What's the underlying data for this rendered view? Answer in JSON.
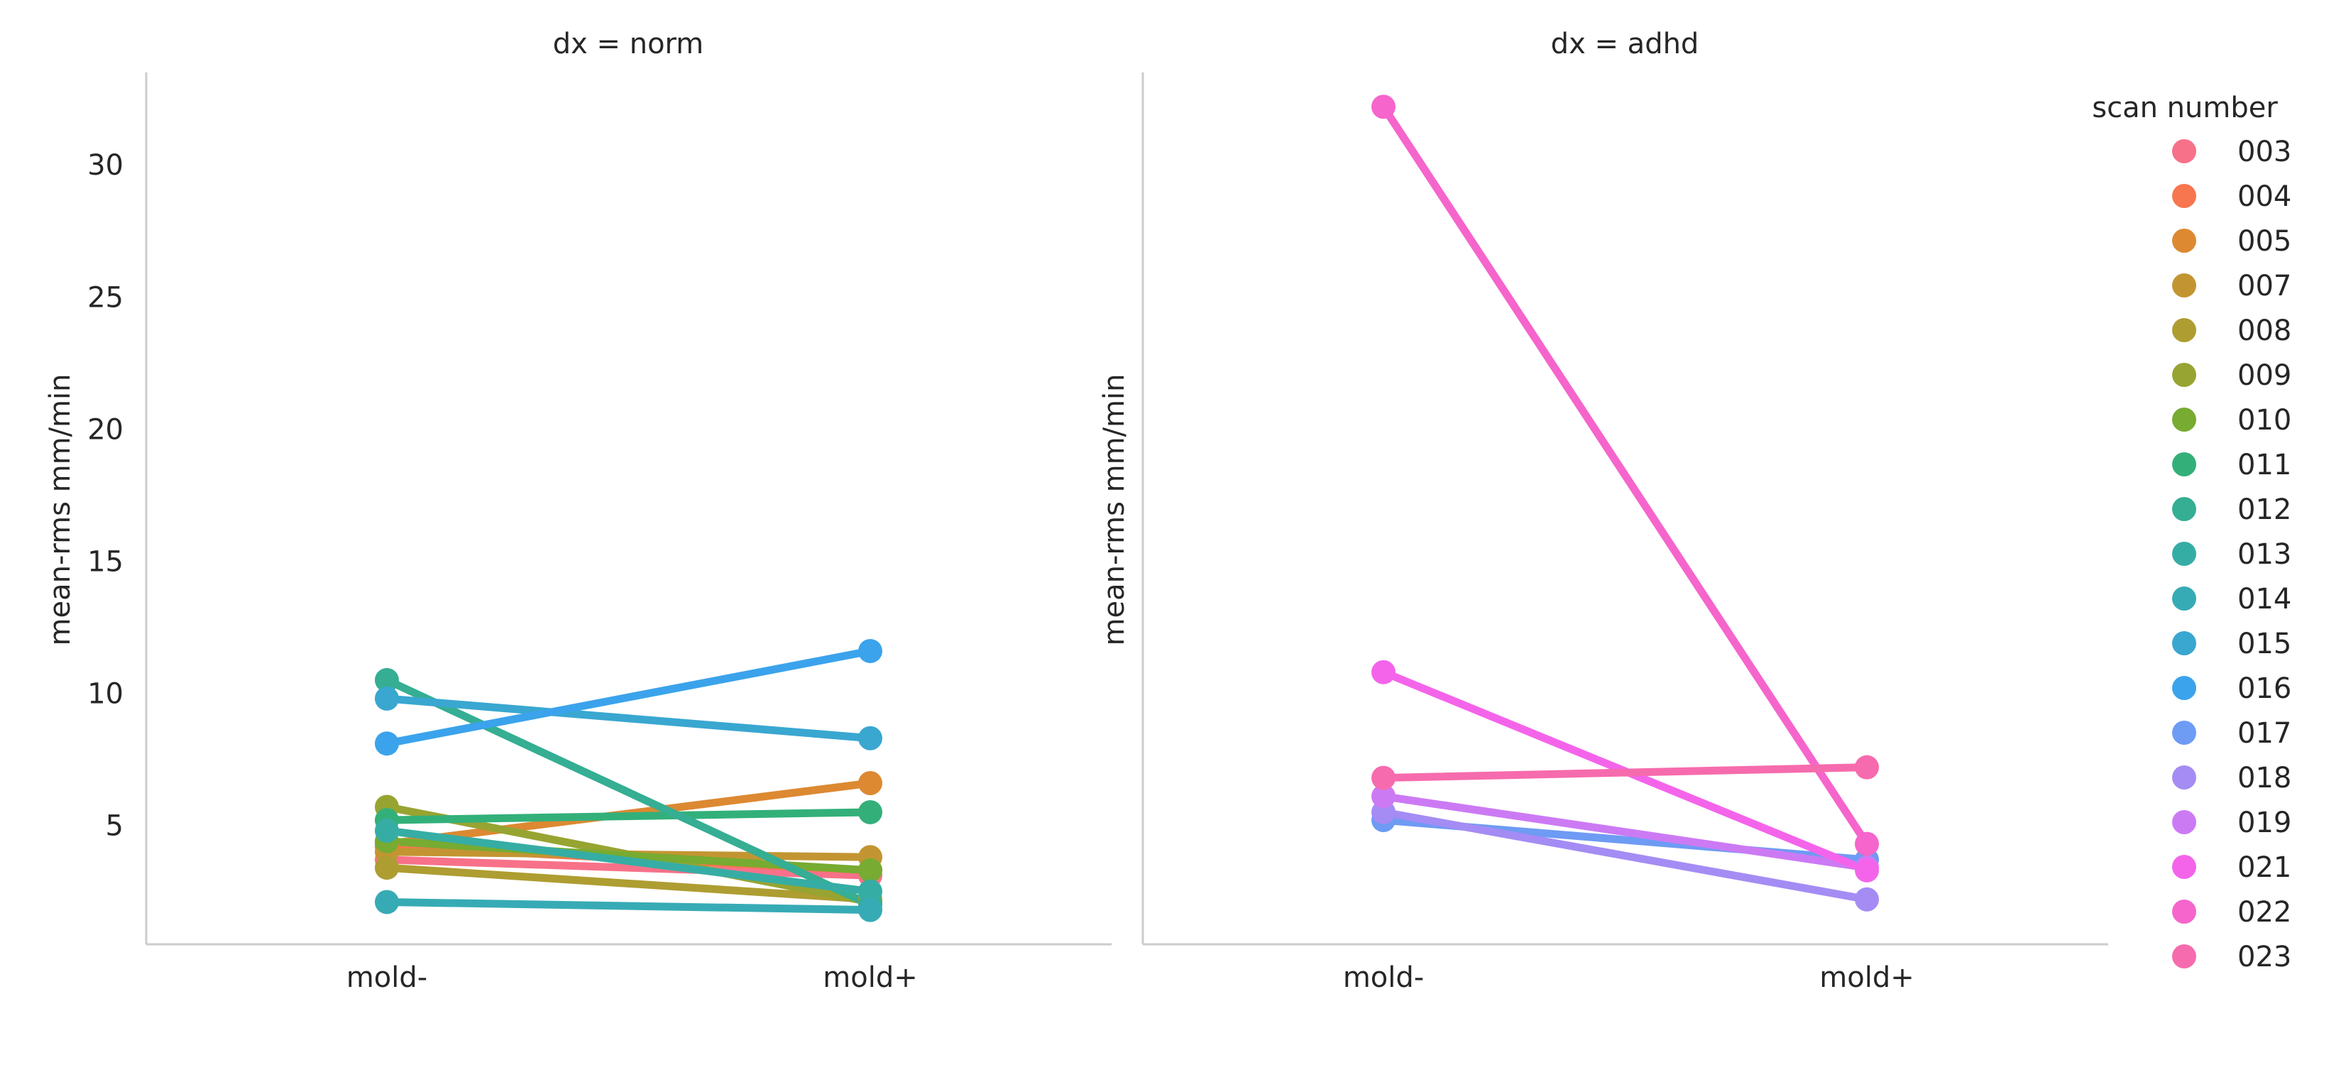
{
  "chart_data": [
    {
      "type": "line",
      "title": "dx = norm",
      "xlabel": "",
      "ylabel": "mean-rms mm/min",
      "categories": [
        "mold-",
        "mold+"
      ],
      "ylim": [
        0.5,
        33.5
      ],
      "yticks": [
        5,
        10,
        15,
        20,
        25,
        30
      ],
      "grid": false,
      "series": [
        {
          "name": "003",
          "color": "#f77189",
          "values": [
            3.7,
            3.1
          ]
        },
        {
          "name": "004",
          "color": "#f7754f",
          "values": [
            4.2,
            3.3
          ]
        },
        {
          "name": "005",
          "color": "#dc8932",
          "values": [
            4.3,
            6.6
          ]
        },
        {
          "name": "007",
          "color": "#c39532",
          "values": [
            4.0,
            3.8
          ]
        },
        {
          "name": "008",
          "color": "#ae9d31",
          "values": [
            3.4,
            2.2
          ]
        },
        {
          "name": "009",
          "color": "#97a431",
          "values": [
            5.7,
            2.1
          ]
        },
        {
          "name": "010",
          "color": "#77ab31",
          "values": [
            4.4,
            3.3
          ]
        },
        {
          "name": "011",
          "color": "#33b07a",
          "values": [
            5.2,
            5.5
          ]
        },
        {
          "name": "012",
          "color": "#35ae93",
          "values": [
            10.5,
            2.0
          ]
        },
        {
          "name": "013",
          "color": "#36ada4",
          "values": [
            4.8,
            2.5
          ]
        },
        {
          "name": "014",
          "color": "#37abb5",
          "values": [
            2.1,
            1.8
          ]
        },
        {
          "name": "015",
          "color": "#39a7d0",
          "values": [
            9.8,
            8.3
          ]
        },
        {
          "name": "016",
          "color": "#3ba3ec",
          "values": [
            8.1,
            11.6
          ]
        }
      ]
    },
    {
      "type": "line",
      "title": "dx = adhd",
      "xlabel": "",
      "ylabel": "mean-rms mm/min",
      "categories": [
        "mold-",
        "mold+"
      ],
      "ylim": [
        0.5,
        33.5
      ],
      "grid": false,
      "series": [
        {
          "name": "017",
          "color": "#6e9bf4",
          "values": [
            5.2,
            3.7
          ]
        },
        {
          "name": "018",
          "color": "#a48cf4",
          "values": [
            5.5,
            2.2
          ]
        },
        {
          "name": "019",
          "color": "#cc7af4",
          "values": [
            6.1,
            3.4
          ]
        },
        {
          "name": "021",
          "color": "#f464ea",
          "values": [
            10.8,
            3.3
          ]
        },
        {
          "name": "022",
          "color": "#f565cc",
          "values": [
            32.2,
            4.3
          ]
        },
        {
          "name": "023",
          "color": "#f66bad",
          "values": [
            6.8,
            7.2
          ]
        }
      ]
    }
  ],
  "legend": {
    "title": "scan number",
    "placement": "right",
    "entries": [
      {
        "label": "003",
        "color": "#f77189"
      },
      {
        "label": "004",
        "color": "#f7754f"
      },
      {
        "label": "005",
        "color": "#dc8932"
      },
      {
        "label": "007",
        "color": "#c39532"
      },
      {
        "label": "008",
        "color": "#ae9d31"
      },
      {
        "label": "009",
        "color": "#97a431"
      },
      {
        "label": "010",
        "color": "#77ab31"
      },
      {
        "label": "011",
        "color": "#33b07a"
      },
      {
        "label": "012",
        "color": "#35ae93"
      },
      {
        "label": "013",
        "color": "#36ada4"
      },
      {
        "label": "014",
        "color": "#37abb5"
      },
      {
        "label": "015",
        "color": "#39a7d0"
      },
      {
        "label": "016",
        "color": "#3ba3ec"
      },
      {
        "label": "017",
        "color": "#6e9bf4"
      },
      {
        "label": "018",
        "color": "#a48cf4"
      },
      {
        "label": "019",
        "color": "#cc7af4"
      },
      {
        "label": "021",
        "color": "#f464ea"
      },
      {
        "label": "022",
        "color": "#f565cc"
      },
      {
        "label": "023",
        "color": "#f66bad"
      }
    ]
  }
}
